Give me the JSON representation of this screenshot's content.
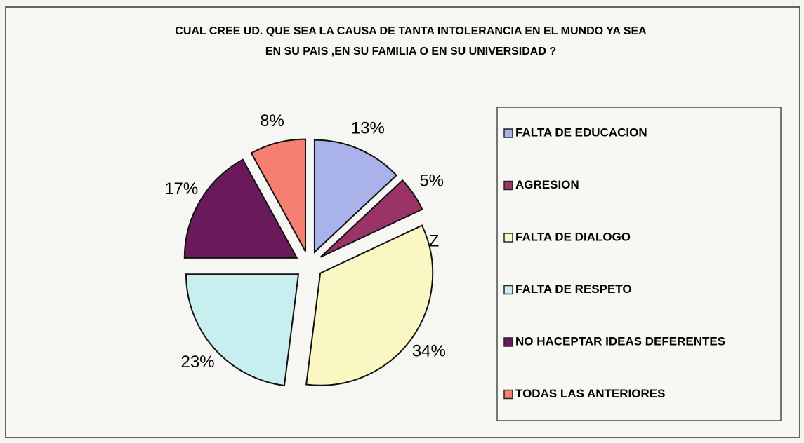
{
  "chart_data": {
    "type": "pie",
    "title": [
      "CUAL CREE UD. QUE SEA LA CAUSA DE TANTA INTOLERANCIA EN EL MUNDO YA SEA",
      "EN SU PAIS ,EN SU FAMILIA O EN SU UNIVERSIDAD ?"
    ],
    "categories": [
      "FALTA DE EDUCACION",
      "AGRESION",
      "FALTA DE DIALOGO",
      "FALTA DE RESPETO",
      "NO HACEPTAR IDEAS DEFERENTES",
      "TODAS LAS ANTERIORES"
    ],
    "values": [
      13,
      5,
      34,
      23,
      17,
      8
    ],
    "value_labels": [
      "13%",
      "5%",
      "34%",
      "23%",
      "17%",
      "8%"
    ],
    "colors": [
      "#a9b3ea",
      "#9a3366",
      "#fbf7c2",
      "#c8eef0",
      "#6a1a5a",
      "#f57f70"
    ],
    "annotations": [
      "Z"
    ],
    "legend": "right"
  }
}
